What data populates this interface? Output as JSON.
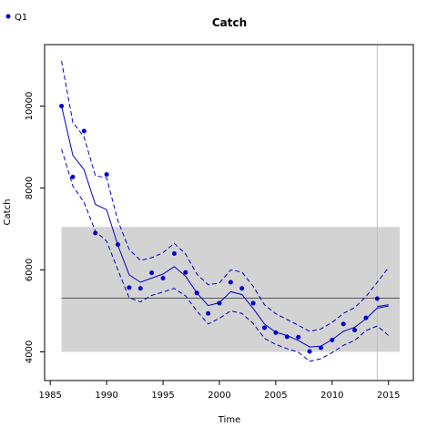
{
  "chart_data": {
    "type": "line",
    "title": "Catch",
    "xlabel": "Time",
    "ylabel": "Catch",
    "xlim": [
      1984.5,
      2017.2
    ],
    "ylim": [
      3300,
      11500
    ],
    "xticks": [
      1985,
      1990,
      1995,
      2000,
      2005,
      2010,
      2015
    ],
    "yticks": [
      4000,
      6000,
      8000,
      10000
    ],
    "grid": false,
    "legend_position": "top-left",
    "colors": {
      "series": "#0000cc",
      "band": "#d3d3d3",
      "reference": "#555555",
      "vline": "#c0c0c0"
    },
    "reference_band": {
      "x": [
        1986,
        2016
      ],
      "y": [
        4000,
        7050
      ]
    },
    "reference_line": {
      "y": 5310,
      "x": [
        1986,
        2016
      ]
    },
    "vertical_line": {
      "x": 2014
    },
    "series": [
      {
        "name": "Q1",
        "style": "points",
        "x": [
          1986,
          1987,
          1988,
          1989,
          1990,
          1991,
          1992,
          1993,
          1994,
          1995,
          1996,
          1997,
          1998,
          1999,
          2000,
          2001,
          2002,
          2003,
          2004,
          2005,
          2006,
          2007,
          2008,
          2009,
          2010,
          2011,
          2012,
          2013,
          2014
        ],
        "y": [
          10000,
          8270,
          9390,
          6900,
          8330,
          6620,
          5570,
          5550,
          5930,
          5800,
          6400,
          5940,
          5440,
          4940,
          5190,
          5700,
          5550,
          5190,
          4590,
          4470,
          4370,
          4360,
          4010,
          4100,
          4290,
          4680,
          4530,
          4830,
          5300
        ]
      },
      {
        "style": "line",
        "x": [
          1986,
          1987,
          1988,
          1989,
          1990,
          1991,
          1992,
          1993,
          1994,
          1995,
          1996,
          1997,
          1998,
          1999,
          2000,
          2001,
          2002,
          2003,
          2004,
          2005,
          2006,
          2007,
          2008,
          2009,
          2010,
          2011,
          2012,
          2013,
          2014,
          2015
        ],
        "y": [
          10000,
          8800,
          8450,
          7600,
          7470,
          6600,
          5880,
          5700,
          5800,
          5900,
          6080,
          5850,
          5440,
          5130,
          5200,
          5470,
          5400,
          5060,
          4680,
          4480,
          4400,
          4280,
          4120,
          4140,
          4300,
          4500,
          4600,
          4810,
          5070,
          5120
        ]
      },
      {
        "style": "dashed",
        "x": [
          1986,
          1987,
          1988,
          1989,
          1990,
          1991,
          1992,
          1993,
          1994,
          1995,
          1996,
          1997,
          1998,
          1999,
          2000,
          2001,
          2002,
          2003,
          2004,
          2005,
          2006,
          2007,
          2008,
          2009,
          2010,
          2011,
          2012,
          2013,
          2014,
          2015
        ],
        "y": [
          11100,
          9600,
          9250,
          8300,
          8250,
          7200,
          6500,
          6230,
          6300,
          6420,
          6650,
          6390,
          5900,
          5640,
          5680,
          6000,
          5950,
          5600,
          5150,
          4930,
          4790,
          4650,
          4500,
          4560,
          4720,
          4940,
          5080,
          5350,
          5700,
          6060
        ]
      },
      {
        "style": "dashed",
        "x": [
          1986,
          1987,
          1988,
          1989,
          1990,
          1991,
          1992,
          1993,
          1994,
          1995,
          1996,
          1997,
          1998,
          1999,
          2000,
          2001,
          2002,
          2003,
          2004,
          2005,
          2006,
          2007,
          2008,
          2009,
          2010,
          2011,
          2012,
          2013,
          2014,
          2015
        ],
        "y": [
          8950,
          8050,
          7650,
          6950,
          6700,
          6000,
          5320,
          5220,
          5380,
          5460,
          5550,
          5370,
          5000,
          4680,
          4820,
          5000,
          4940,
          4690,
          4330,
          4180,
          4080,
          3990,
          3770,
          3830,
          3980,
          4160,
          4280,
          4520,
          4630,
          4400
        ]
      },
      {
        "style": "line",
        "x": [
          2014,
          2015
        ],
        "y": [
          5110,
          5150
        ]
      }
    ]
  }
}
